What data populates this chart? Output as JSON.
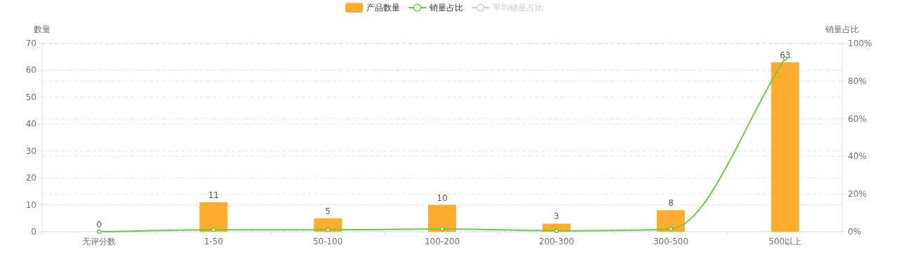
{
  "chart_data": {
    "type": "bar",
    "categories": [
      "无评分数",
      "1-50",
      "50-100",
      "100-200",
      "200-300",
      "300-500",
      "500以上"
    ],
    "series": [
      {
        "name": "产品数量",
        "color": "#ffac2f",
        "values": [
          0,
          11,
          5,
          10,
          3,
          8,
          63
        ],
        "value_labels": [
          "0",
          "11",
          "5",
          "10",
          "3",
          "8",
          "63"
        ]
      },
      {
        "name": "销量占比",
        "type": "line",
        "axis": "y2",
        "color": "#6dc84a",
        "values": [
          0,
          1,
          1,
          1.5,
          0.5,
          1.5,
          92
        ]
      },
      {
        "name": "平均销量占比",
        "type": "line",
        "axis": "y2",
        "color": "#cccccc",
        "values": [
          null,
          null,
          null,
          null,
          null,
          null,
          null
        ]
      }
    ],
    "ylabel": "数量",
    "y2label": "销量占比",
    "ylim": [
      0,
      70
    ],
    "yticks": [
      0,
      10,
      20,
      30,
      40,
      50,
      60,
      70
    ],
    "y2lim": [
      0,
      100
    ],
    "y2ticks": [
      {
        "value": 0,
        "label": "0%"
      },
      {
        "value": 20,
        "label": "20%"
      },
      {
        "value": 40,
        "label": "40%"
      },
      {
        "value": 60,
        "label": "60%"
      },
      {
        "value": 80,
        "label": "80%"
      },
      {
        "value": 100,
        "label": "100%"
      }
    ],
    "grid": true,
    "legend": "top",
    "marker": "circle",
    "line_style": "solid"
  }
}
